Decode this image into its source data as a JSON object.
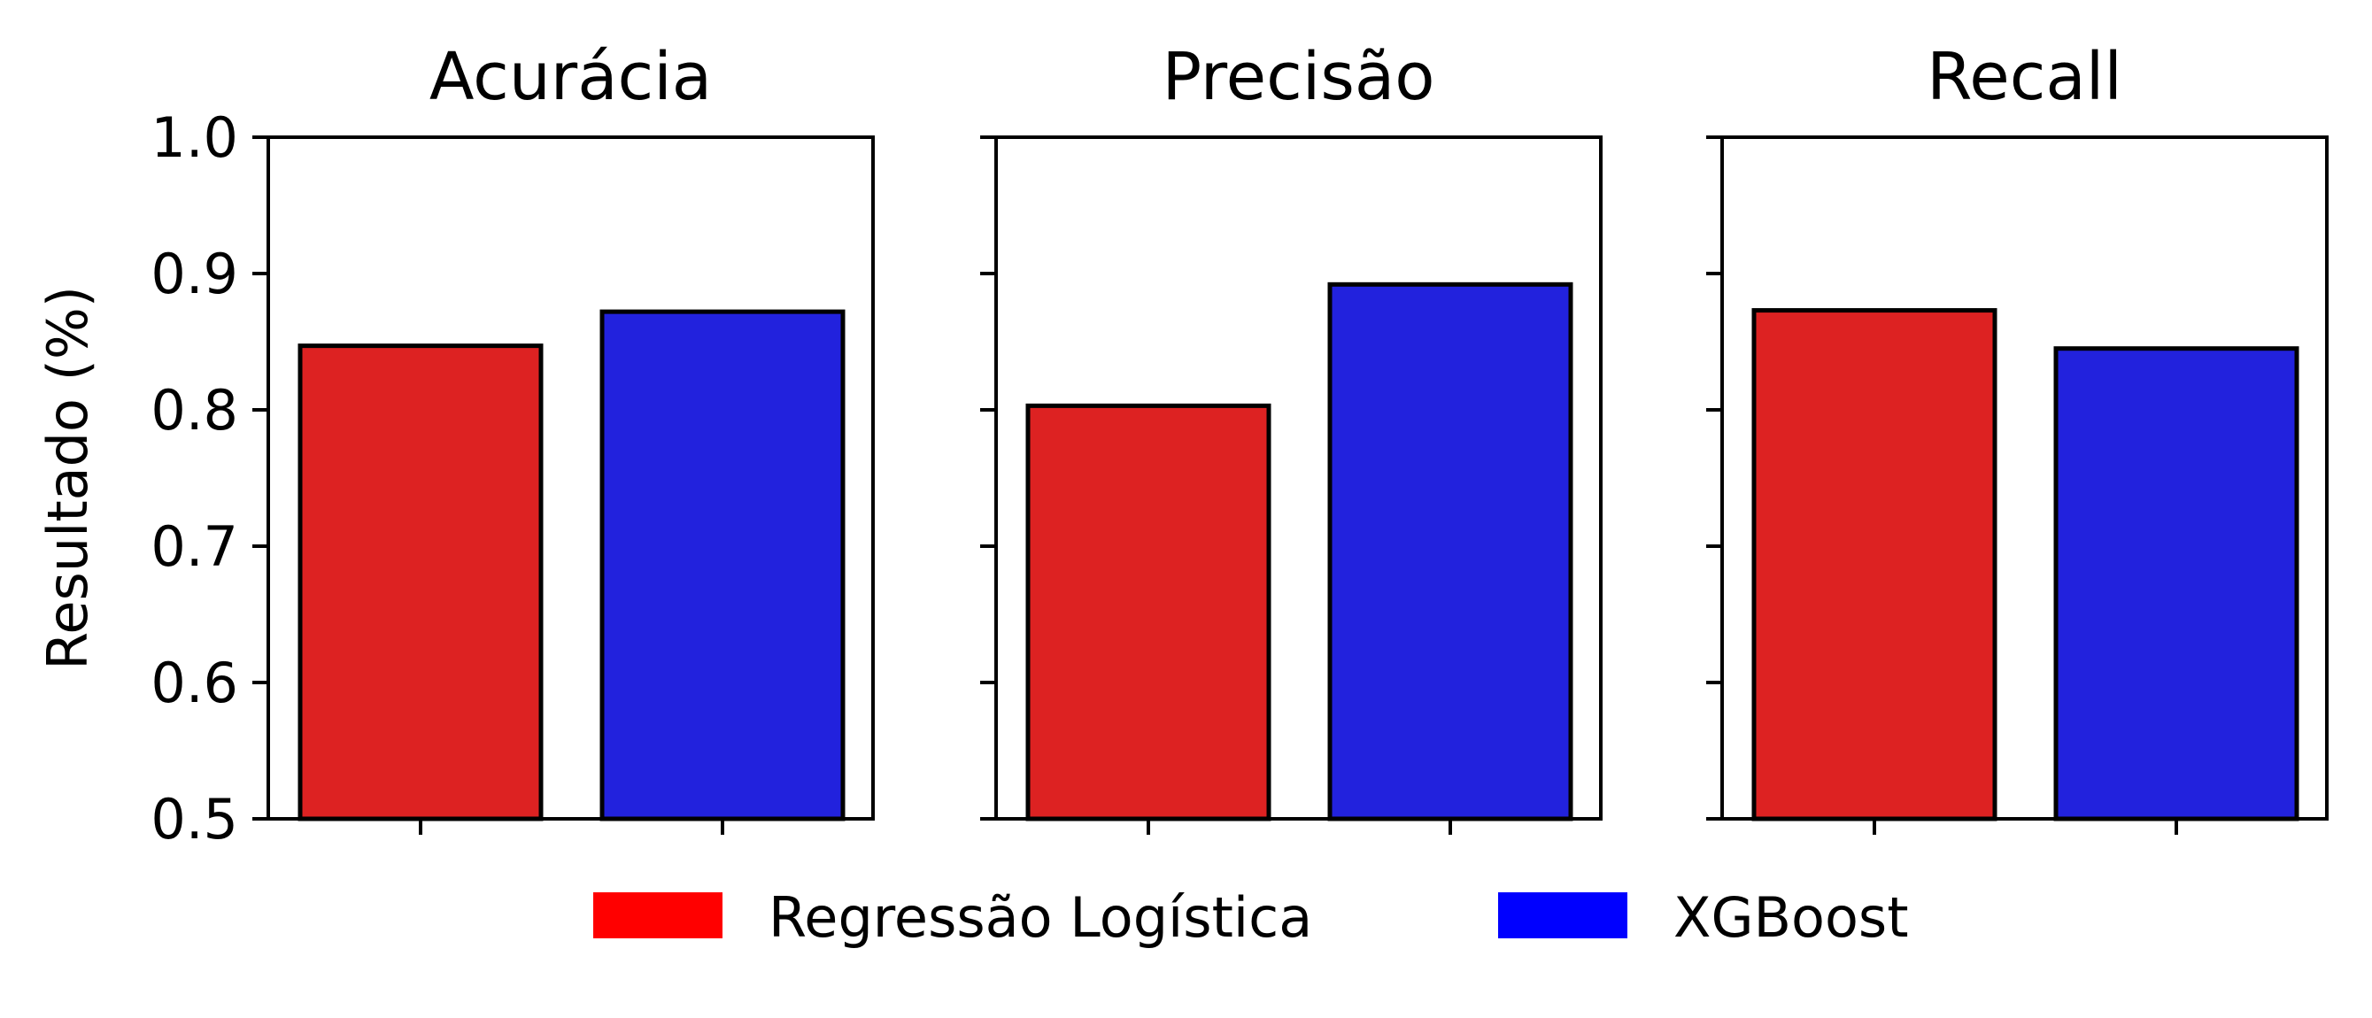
{
  "chart_data": {
    "type": "bar",
    "ylabel": "Resultado (%)",
    "ylim": [
      0.5,
      1.0
    ],
    "yticks": [
      "0.5",
      "0.6",
      "0.7",
      "0.8",
      "0.9",
      "1.0"
    ],
    "legend": {
      "placement": "bottom-center",
      "entries": [
        {
          "name": "Regressão Logística",
          "color": "#ff0000"
        },
        {
          "name": "XGBoost",
          "color": "#0000ff"
        }
      ]
    },
    "bar_colors": [
      "#dd2222",
      "#2222dd"
    ],
    "panels": [
      {
        "title": "Acurácia",
        "values": [
          0.847,
          0.872
        ]
      },
      {
        "title": "Precisão",
        "values": [
          0.803,
          0.892
        ]
      },
      {
        "title": "Recall",
        "values": [
          0.873,
          0.845
        ]
      }
    ]
  }
}
